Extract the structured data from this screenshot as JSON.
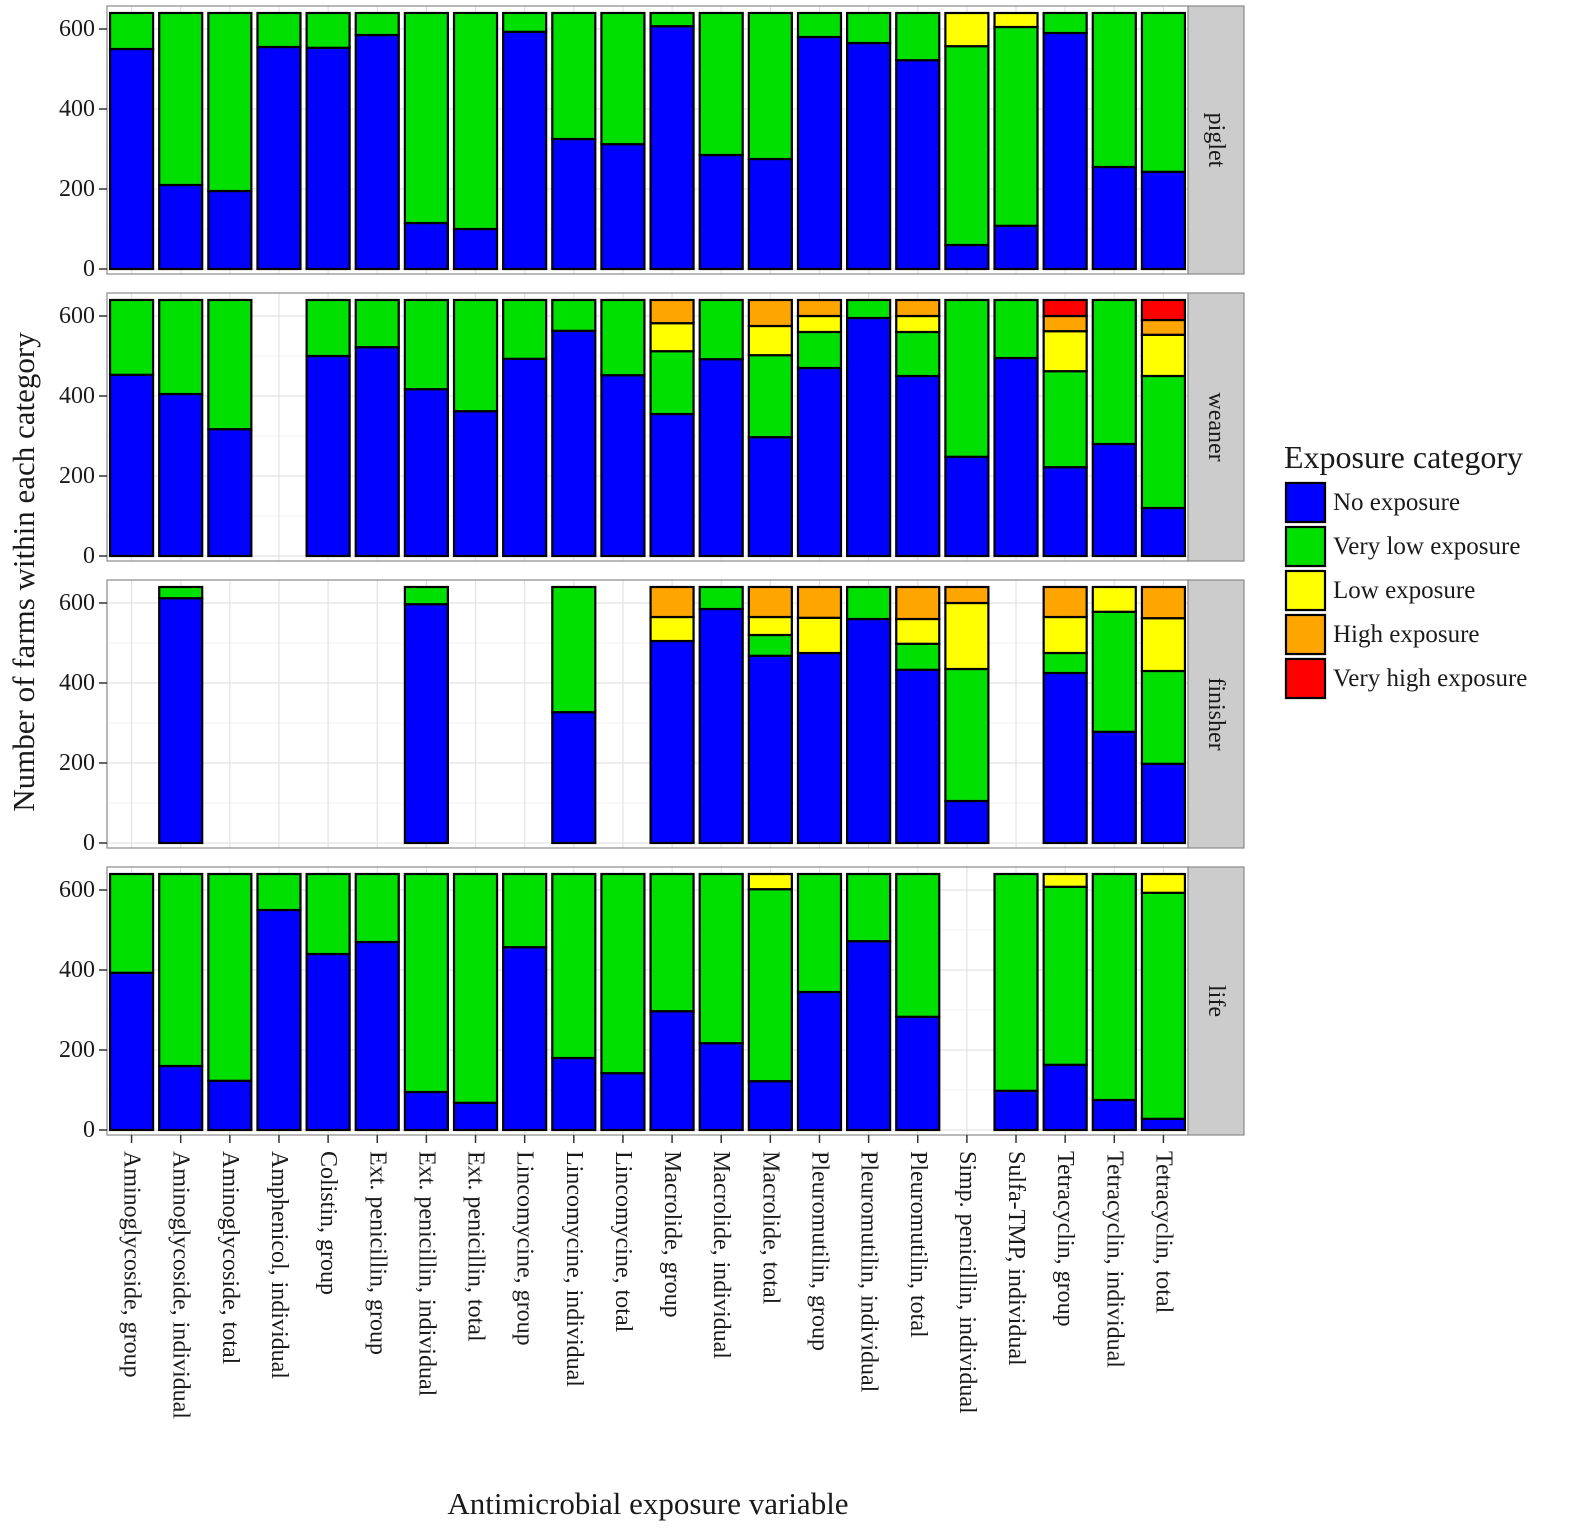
{
  "chart_data": {
    "type": "bar",
    "stacked": true,
    "xlabel": "Antimicrobial exposure variable",
    "ylabel": "Number of farms within each category",
    "ylim": [
      0,
      650
    ],
    "yticks": [
      0,
      200,
      400,
      600
    ],
    "grid": true,
    "legend_position": "right",
    "categories": [
      "Aminoglycoside, group",
      "Aminoglycoside, individual",
      "Aminoglycoside, total",
      "Amphenicol, individual",
      "Colistin, group",
      "Ext. penicillin, group",
      "Ext. penicillin, individual",
      "Ext. penicillin, total",
      "Lincomycine, group",
      "Lincomycine, individual",
      "Lincomycine, total",
      "Macrolide, group",
      "Macrolide, individual",
      "Macrolide, total",
      "Pleuromutilin, group",
      "Pleuromutilin, individual",
      "Pleuromutilin, total",
      "Simp. penicillin, individual",
      "Sulfa-TMP, individual",
      "Tetracyclin, group",
      "Tetracyclin, individual",
      "Tetracyclin, total"
    ],
    "legend": {
      "title": "Exposure category",
      "entries": [
        {
          "name": "No exposure",
          "color": "#0000ff"
        },
        {
          "name": "Very low exposure",
          "color": "#00e000"
        },
        {
          "name": "Low exposure",
          "color": "#ffff00"
        },
        {
          "name": "High exposure",
          "color": "#ffa500"
        },
        {
          "name": "Very high exposure",
          "color": "#ff0000"
        }
      ]
    },
    "facets": [
      {
        "name": "piglet",
        "series": [
          {
            "name": "No exposure",
            "values": [
              550,
              210,
              195,
              555,
              553,
              585,
              115,
              100,
              593,
              325,
              312,
              607,
              285,
              275,
              580,
              565,
              522,
              60,
              108,
              590,
              255,
              243
            ]
          },
          {
            "name": "Very low exposure",
            "values": [
              90,
              430,
              445,
              85,
              87,
              55,
              525,
              540,
              47,
              315,
              328,
              33,
              355,
              365,
              60,
              75,
              118,
              497,
              497,
              50,
              385,
              397
            ]
          },
          {
            "name": "Low exposure",
            "values": [
              0,
              0,
              0,
              0,
              0,
              0,
              0,
              0,
              0,
              0,
              0,
              0,
              0,
              0,
              0,
              0,
              0,
              83,
              35,
              0,
              0,
              0
            ]
          },
          {
            "name": "High exposure",
            "values": [
              0,
              0,
              0,
              0,
              0,
              0,
              0,
              0,
              0,
              0,
              0,
              0,
              0,
              0,
              0,
              0,
              0,
              0,
              0,
              0,
              0,
              0
            ]
          },
          {
            "name": "Very high exposure",
            "values": [
              0,
              0,
              0,
              0,
              0,
              0,
              0,
              0,
              0,
              0,
              0,
              0,
              0,
              0,
              0,
              0,
              0,
              0,
              0,
              0,
              0,
              0
            ]
          }
        ]
      },
      {
        "name": "weaner",
        "series": [
          {
            "name": "No exposure",
            "values": [
              453,
              405,
              317,
              null,
              500,
              522,
              417,
              362,
              493,
              563,
              452,
              355,
              492,
              297,
              470,
              595,
              450,
              248,
              495,
              222,
              280,
              120
            ]
          },
          {
            "name": "Very low exposure",
            "values": [
              187,
              235,
              323,
              null,
              140,
              118,
              223,
              278,
              147,
              77,
              188,
              157,
              148,
              205,
              90,
              45,
              110,
              392,
              145,
              240,
              360,
              330
            ]
          },
          {
            "name": "Low exposure",
            "values": [
              0,
              0,
              0,
              null,
              0,
              0,
              0,
              0,
              0,
              0,
              0,
              70,
              0,
              73,
              40,
              0,
              40,
              0,
              0,
              100,
              0,
              103
            ]
          },
          {
            "name": "High exposure",
            "values": [
              0,
              0,
              0,
              null,
              0,
              0,
              0,
              0,
              0,
              0,
              0,
              58,
              0,
              65,
              40,
              0,
              40,
              0,
              0,
              38,
              0,
              37
            ]
          },
          {
            "name": "Very high exposure",
            "values": [
              0,
              0,
              0,
              null,
              0,
              0,
              0,
              0,
              0,
              0,
              0,
              0,
              0,
              0,
              0,
              0,
              0,
              0,
              0,
              40,
              0,
              50
            ]
          }
        ]
      },
      {
        "name": "finisher",
        "series": [
          {
            "name": "No exposure",
            "values": [
              null,
              612,
              null,
              null,
              null,
              null,
              597,
              null,
              null,
              327,
              null,
              505,
              585,
              468,
              475,
              560,
              433,
              105,
              null,
              425,
              278,
              198
            ]
          },
          {
            "name": "Very low exposure",
            "values": [
              null,
              28,
              null,
              null,
              null,
              null,
              43,
              null,
              null,
              313,
              null,
              0,
              55,
              52,
              0,
              80,
              65,
              330,
              null,
              50,
              300,
              232
            ]
          },
          {
            "name": "Low exposure",
            "values": [
              null,
              0,
              null,
              null,
              null,
              null,
              0,
              null,
              null,
              0,
              null,
              60,
              0,
              45,
              88,
              0,
              62,
              165,
              null,
              90,
              62,
              132
            ]
          },
          {
            "name": "High exposure",
            "values": [
              null,
              0,
              null,
              null,
              null,
              null,
              0,
              null,
              null,
              0,
              null,
              75,
              0,
              75,
              77,
              0,
              80,
              40,
              null,
              75,
              0,
              78
            ]
          },
          {
            "name": "Very high exposure",
            "values": [
              null,
              0,
              null,
              null,
              null,
              null,
              0,
              null,
              null,
              0,
              null,
              0,
              0,
              0,
              0,
              0,
              0,
              0,
              null,
              0,
              0,
              0
            ]
          }
        ]
      },
      {
        "name": "life",
        "series": [
          {
            "name": "No exposure",
            "values": [
              393,
              160,
              123,
              550,
              440,
              470,
              95,
              68,
              457,
              180,
              142,
              297,
              217,
              122,
              345,
              472,
              283,
              null,
              98,
              163,
              75,
              28
            ]
          },
          {
            "name": "Very low exposure",
            "values": [
              247,
              480,
              517,
              90,
              200,
              170,
              545,
              572,
              183,
              460,
              498,
              343,
              423,
              480,
              295,
              168,
              357,
              null,
              542,
              445,
              565,
              565
            ]
          },
          {
            "name": "Low exposure",
            "values": [
              0,
              0,
              0,
              0,
              0,
              0,
              0,
              0,
              0,
              0,
              0,
              0,
              0,
              38,
              0,
              0,
              0,
              null,
              0,
              32,
              0,
              47
            ]
          },
          {
            "name": "High exposure",
            "values": [
              0,
              0,
              0,
              0,
              0,
              0,
              0,
              0,
              0,
              0,
              0,
              0,
              0,
              0,
              0,
              0,
              0,
              null,
              0,
              0,
              0,
              0
            ]
          },
          {
            "name": "Very high exposure",
            "values": [
              0,
              0,
              0,
              0,
              0,
              0,
              0,
              0,
              0,
              0,
              0,
              0,
              0,
              0,
              0,
              0,
              0,
              null,
              0,
              0,
              0,
              0
            ]
          }
        ]
      }
    ]
  }
}
